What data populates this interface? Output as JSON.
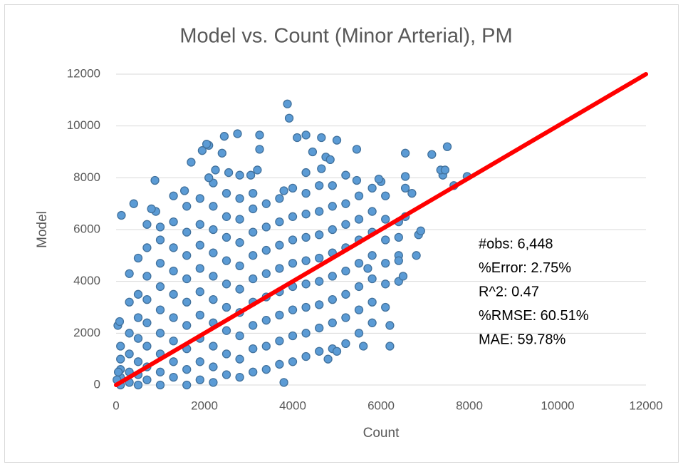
{
  "chart_data": {
    "type": "scatter",
    "title": "Model vs. Count (Minor Arterial), PM",
    "xlabel": "Count",
    "ylabel": "Model",
    "xlim": [
      0,
      12000
    ],
    "xticks": [
      0,
      2000,
      4000,
      6000,
      8000,
      10000,
      12000
    ],
    "ylim": [
      0,
      12000
    ],
    "yticks": [
      0,
      2000,
      4000,
      6000,
      8000,
      10000,
      12000
    ],
    "grid": true,
    "annotations": [
      "#obs: 6,448",
      "%Error: 2.75%",
      "R^2: 0.47",
      "%RMSE: 60.51%",
      "MAE: 59.78%"
    ],
    "series": [
      {
        "type": "scatter",
        "color": "#5b9bd5",
        "edge_color": "#41719c",
        "x": [
          100,
          100,
          100,
          100,
          100,
          300,
          300,
          300,
          300,
          300,
          300,
          500,
          500,
          500,
          500,
          500,
          500,
          500,
          700,
          700,
          700,
          700,
          700,
          700,
          700,
          700,
          1000,
          1000,
          1000,
          1000,
          1000,
          1000,
          1000,
          1000,
          1000,
          1300,
          1300,
          1300,
          1300,
          1300,
          1300,
          1300,
          1300,
          1600,
          1600,
          1600,
          1600,
          1600,
          1600,
          1600,
          1600,
          1600,
          1900,
          1900,
          1900,
          1900,
          1900,
          1900,
          1900,
          1900,
          1900,
          2200,
          2200,
          2200,
          2200,
          2200,
          2200,
          2200,
          2200,
          2200,
          2500,
          2500,
          2500,
          2500,
          2500,
          2500,
          2500,
          2500,
          2500,
          2800,
          2800,
          2800,
          2800,
          2800,
          2800,
          2800,
          2800,
          2800,
          3100,
          3100,
          3100,
          3100,
          3100,
          3100,
          3100,
          3100,
          3100,
          3400,
          3400,
          3400,
          3400,
          3400,
          3400,
          3400,
          3400,
          3700,
          3700,
          3700,
          3700,
          3700,
          3700,
          3700,
          3700,
          4000,
          4000,
          4000,
          4000,
          4000,
          4000,
          4000,
          4000,
          4300,
          4300,
          4300,
          4300,
          4300,
          4300,
          4300,
          4300,
          4600,
          4600,
          4600,
          4600,
          4600,
          4600,
          4600,
          4600,
          4900,
          4900,
          4900,
          4900,
          4900,
          4900,
          4900,
          4900,
          5200,
          5200,
          5200,
          5200,
          5200,
          5200,
          5200,
          5500,
          5500,
          5500,
          5500,
          5500,
          5500,
          5500,
          5800,
          5800,
          5800,
          5800,
          5800,
          5800,
          5800,
          6100,
          6100,
          6100,
          6100,
          6100,
          6100,
          6400,
          6400,
          6400,
          6400,
          3880,
          3920,
          2750,
          3250,
          2450,
          4100,
          4300,
          4650,
          5000,
          2100,
          2050,
          1950,
          2400,
          3250,
          4450,
          5450,
          6550,
          7150,
          7500,
          1700,
          7950,
          7650,
          7400,
          7350,
          7450,
          880,
          400,
          120,
          900,
          800,
          5700,
          6200,
          6200,
          5600,
          3800,
          4800,
          5000,
          6500,
          6800,
          6850,
          6900,
          6400,
          6700,
          6550,
          6550,
          6550,
          6000,
          5950,
          5450,
          5200,
          4750,
          4850,
          4650,
          4300,
          3800,
          3200,
          3050,
          2800,
          2550,
          2250,
          2200,
          2100,
          1550,
          1300,
          40,
          80,
          50,
          20
        ],
        "values": [
          0,
          300,
          600,
          1000,
          1500,
          100,
          500,
          1200,
          2000,
          3200,
          4300,
          0,
          400,
          900,
          1800,
          2600,
          3500,
          4900,
          200,
          700,
          1500,
          2400,
          3300,
          4200,
          5300,
          6200,
          0,
          500,
          1200,
          2000,
          2900,
          3800,
          4700,
          5600,
          6100,
          300,
          900,
          1700,
          2600,
          3500,
          4400,
          5300,
          6300,
          0,
          600,
          1400,
          2300,
          3200,
          4100,
          5000,
          5900,
          6900,
          200,
          900,
          1800,
          2700,
          3600,
          4500,
          5400,
          6200,
          7200,
          100,
          700,
          1500,
          2400,
          3300,
          4200,
          5100,
          6000,
          6900,
          400,
          1200,
          2100,
          3000,
          3900,
          4800,
          5700,
          6500,
          7400,
          300,
          1000,
          1900,
          2800,
          3700,
          4600,
          5500,
          6400,
          7200,
          500,
          1400,
          2300,
          3200,
          4100,
          5000,
          5900,
          6800,
          7400,
          600,
          1500,
          2500,
          3400,
          4300,
          5200,
          6100,
          7000,
          800,
          1700,
          2700,
          3600,
          4500,
          5400,
          6300,
          7200,
          900,
          1900,
          2900,
          3800,
          4700,
          5600,
          6500,
          7600,
          1100,
          2000,
          3000,
          3900,
          4800,
          5700,
          6600,
          7400,
          1300,
          2200,
          3100,
          4000,
          4900,
          5800,
          6700,
          7700,
          1400,
          2400,
          3300,
          4200,
          5100,
          6000,
          6900,
          7700,
          1600,
          2600,
          3500,
          4400,
          5300,
          6200,
          7000,
          2000,
          2900,
          3800,
          4700,
          5600,
          6400,
          7300,
          2400,
          3200,
          4100,
          5000,
          5900,
          6700,
          7600,
          3000,
          3900,
          4700,
          5600,
          6400,
          7300,
          4000,
          5000,
          5700,
          6300,
          10850,
          10300,
          9700,
          9650,
          9600,
          9550,
          9650,
          9550,
          9450,
          9250,
          9300,
          9050,
          8950,
          9100,
          9000,
          9100,
          8950,
          8900,
          9200,
          8600,
          8050,
          7700,
          8100,
          8300,
          8300,
          7900,
          7000,
          6550,
          6700,
          6800,
          4500,
          2300,
          1500,
          1500,
          100,
          1000,
          1300,
          4200,
          5000,
          5800,
          5950,
          4800,
          7400,
          6500,
          7600,
          8050,
          7850,
          7950,
          7900,
          8100,
          8800,
          8700,
          8350,
          8200,
          7500,
          8300,
          8100,
          8100,
          8200,
          8300,
          7800,
          8000,
          7500,
          7300,
          2300,
          2450,
          500,
          200
        ]
      },
      {
        "type": "line",
        "color": "#ff0000",
        "x": [
          0,
          12000
        ],
        "values": [
          0,
          12000
        ]
      }
    ]
  }
}
